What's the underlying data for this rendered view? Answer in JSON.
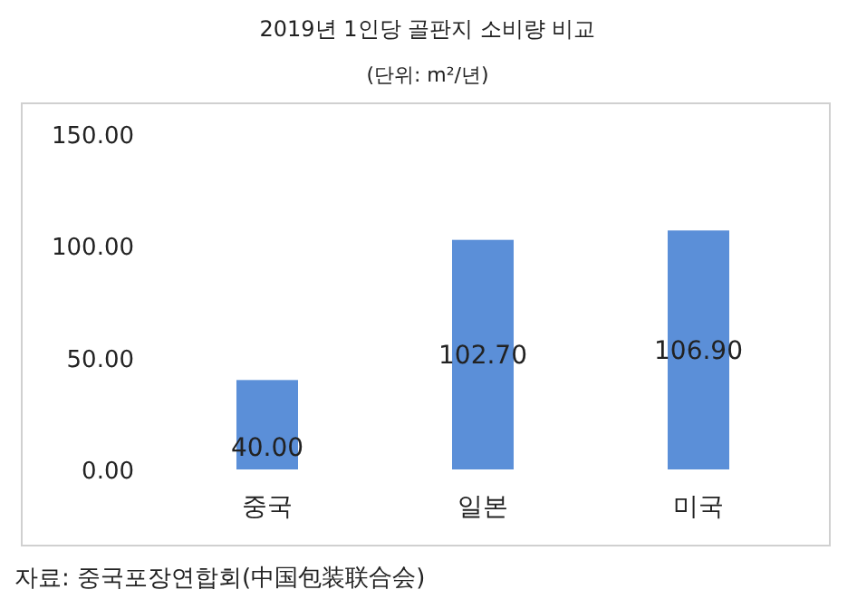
{
  "chart_data": {
    "type": "bar",
    "title": "2019년 1인당 골판지 소비량 비교",
    "subtitle": "(단위: m²/년)",
    "categories": [
      "중국",
      "일본",
      "미국"
    ],
    "values": [
      40.0,
      102.7,
      106.9
    ],
    "value_labels": [
      "40.00",
      "102.70",
      "106.90"
    ],
    "color": "#5b8fd8",
    "ylim": [
      0,
      150
    ],
    "yticks": [
      {
        "value": 0,
        "label": "0.00"
      },
      {
        "value": 50,
        "label": "50.00"
      },
      {
        "value": 100,
        "label": "100.00"
      },
      {
        "value": 150,
        "label": "150.00"
      }
    ],
    "annotations": [
      "자료: 중국포장연합회(中国包装联合会)"
    ]
  }
}
